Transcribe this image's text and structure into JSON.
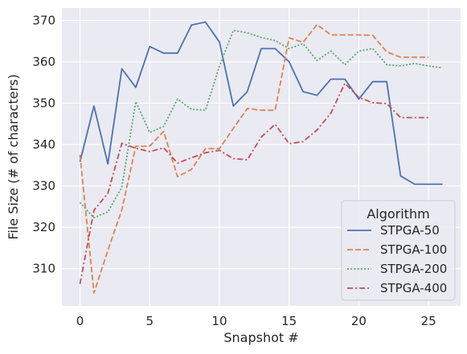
{
  "chart_data": {
    "type": "line",
    "xlabel": "Snapshot #",
    "ylabel": "File Size (# of characters)",
    "xlim": [
      -1.3,
      27.3
    ],
    "ylim": [
      301,
      373
    ],
    "xticks": [
      0,
      5,
      10,
      15,
      20,
      25
    ],
    "yticks": [
      310,
      320,
      330,
      340,
      350,
      360,
      370
    ],
    "grid": true,
    "background": "#eaeaf2",
    "legend": {
      "title": "Algorithm",
      "placement": "lower-right"
    },
    "series": [
      {
        "name": "STPGA-50",
        "color": "#4c72b0",
        "dash": "solid",
        "x": [
          0,
          1,
          2,
          3,
          4,
          5,
          6,
          7,
          8,
          9,
          10,
          11,
          12,
          13,
          14,
          15,
          16,
          17,
          18,
          19,
          20,
          21,
          22,
          23,
          24,
          25,
          26
        ],
        "y": [
          335.8,
          349.3,
          335.3,
          358.3,
          353.8,
          363.7,
          362.1,
          362.1,
          368.9,
          369.6,
          364.8,
          349.3,
          352.8,
          363.2,
          363.2,
          360.0,
          352.8,
          351.9,
          355.8,
          355.8,
          351.0,
          355.2,
          355.2,
          332.4,
          330.4,
          330.4,
          330.4
        ]
      },
      {
        "name": "STPGA-100",
        "color": "#dd8452",
        "dash": "dashed",
        "x": [
          0,
          1,
          2,
          3,
          4,
          5,
          6,
          7,
          8,
          9,
          10,
          11,
          12,
          13,
          14,
          15,
          16,
          17,
          18,
          19,
          20,
          21,
          22,
          23,
          24,
          25
        ],
        "y": [
          337.5,
          304.1,
          314.4,
          324.2,
          339.6,
          339.6,
          343.2,
          332.2,
          334.0,
          339.0,
          339.0,
          343.9,
          348.7,
          348.3,
          348.3,
          365.8,
          364.7,
          369.0,
          366.5,
          366.5,
          366.5,
          366.4,
          362.4,
          361.1,
          361.1,
          361.1
        ]
      },
      {
        "name": "STPGA-200",
        "color": "#55a868",
        "dash": "dotted",
        "x": [
          0,
          1,
          2,
          3,
          4,
          5,
          6,
          7,
          8,
          9,
          10,
          11,
          12,
          13,
          14,
          15,
          16,
          17,
          18,
          19,
          20,
          21,
          22,
          23,
          24,
          25,
          26
        ],
        "y": [
          326.0,
          322.3,
          323.7,
          329.7,
          350.4,
          342.9,
          344.4,
          351.0,
          348.5,
          348.3,
          358.9,
          367.6,
          367.0,
          365.9,
          365.1,
          363.2,
          364.4,
          360.3,
          362.6,
          359.3,
          362.6,
          363.2,
          359.3,
          359.0,
          359.6,
          359.0,
          358.5
        ]
      },
      {
        "name": "STPGA-400",
        "color": "#c44e52",
        "dash": "dashdot",
        "x": [
          0,
          1,
          2,
          3,
          4,
          5,
          6,
          7,
          8,
          9,
          10,
          11,
          12,
          13,
          14,
          15,
          16,
          17,
          18,
          19,
          20,
          21,
          22,
          23,
          24,
          25
        ],
        "y": [
          306.3,
          324.1,
          328.2,
          340.3,
          339.1,
          338.3,
          339.2,
          335.5,
          336.8,
          338.0,
          338.6,
          336.6,
          336.3,
          341.8,
          344.9,
          340.2,
          340.7,
          343.5,
          347.6,
          354.8,
          351.4,
          350.1,
          349.9,
          346.5,
          346.5,
          346.5
        ]
      }
    ]
  }
}
